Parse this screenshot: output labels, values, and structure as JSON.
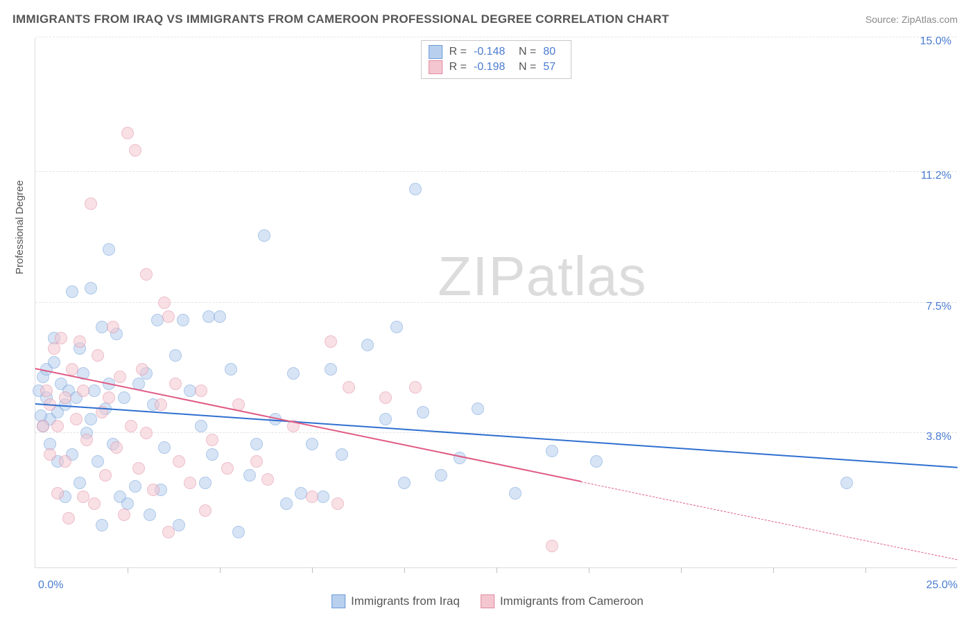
{
  "title": "IMMIGRANTS FROM IRAQ VS IMMIGRANTS FROM CAMEROON PROFESSIONAL DEGREE CORRELATION CHART",
  "source_label": "Source: ZipAtlas.com",
  "y_axis_label": "Professional Degree",
  "watermark": {
    "bold": "ZIP",
    "light": "atlas"
  },
  "chart": {
    "type": "scatter-with-regression",
    "xlim": [
      0,
      25
    ],
    "ylim": [
      0,
      15
    ],
    "x_ticks": [
      2.5,
      5,
      7.5,
      10,
      12.5,
      15,
      17.5,
      20,
      22.5
    ],
    "y_gridlines": [
      3.8,
      7.5,
      11.2,
      15.0
    ],
    "y_tick_labels_right": [
      "3.8%",
      "7.5%",
      "11.2%",
      "15.0%"
    ],
    "corner_bl": "0.0%",
    "corner_br": "25.0%",
    "background_color": "#ffffff",
    "grid_color": "#e4e4e4",
    "axis_color": "#dcdcdc",
    "label_color": "#4a7bd0",
    "marker_radius": 9,
    "marker_opacity": 0.55,
    "marker_border_width": 1.2,
    "regression_line_width": 2.5
  },
  "series": [
    {
      "label": "Immigrants from Iraq",
      "fill": "#b8cfee",
      "stroke": "#6a9bd8",
      "line_color": "#2f6fd0",
      "stats": {
        "R": "-0.148",
        "N": "80"
      },
      "regression": {
        "x1": 0,
        "y1": 4.6,
        "x2": 25,
        "y2": 2.8,
        "solid_until_x": 25
      },
      "points": [
        [
          0.1,
          5.0
        ],
        [
          0.2,
          5.4
        ],
        [
          0.2,
          4.0
        ],
        [
          0.3,
          4.8
        ],
        [
          0.3,
          5.6
        ],
        [
          0.4,
          4.2
        ],
        [
          0.4,
          3.5
        ],
        [
          0.5,
          5.8
        ],
        [
          0.5,
          6.5
        ],
        [
          0.6,
          3.0
        ],
        [
          0.6,
          4.4
        ],
        [
          0.7,
          5.2
        ],
        [
          0.8,
          4.6
        ],
        [
          0.8,
          2.0
        ],
        [
          0.9,
          5.0
        ],
        [
          1.0,
          7.8
        ],
        [
          1.0,
          3.2
        ],
        [
          1.1,
          4.8
        ],
        [
          1.2,
          6.2
        ],
        [
          1.2,
          2.4
        ],
        [
          1.3,
          5.5
        ],
        [
          1.4,
          3.8
        ],
        [
          1.5,
          7.9
        ],
        [
          1.5,
          4.2
        ],
        [
          1.6,
          5.0
        ],
        [
          1.7,
          3.0
        ],
        [
          1.8,
          6.8
        ],
        [
          1.8,
          1.2
        ],
        [
          1.9,
          4.5
        ],
        [
          2.0,
          9.0
        ],
        [
          2.0,
          5.2
        ],
        [
          2.1,
          3.5
        ],
        [
          2.2,
          6.6
        ],
        [
          2.3,
          2.0
        ],
        [
          2.4,
          4.8
        ],
        [
          2.5,
          1.8
        ],
        [
          2.7,
          2.3
        ],
        [
          2.8,
          5.2
        ],
        [
          3.0,
          5.5
        ],
        [
          3.1,
          1.5
        ],
        [
          3.2,
          4.6
        ],
        [
          3.3,
          7.0
        ],
        [
          3.4,
          2.2
        ],
        [
          3.5,
          3.4
        ],
        [
          3.8,
          6.0
        ],
        [
          3.9,
          1.2
        ],
        [
          4.0,
          7.0
        ],
        [
          4.2,
          5.0
        ],
        [
          4.5,
          4.0
        ],
        [
          4.6,
          2.4
        ],
        [
          4.7,
          7.1
        ],
        [
          4.8,
          3.2
        ],
        [
          5.0,
          7.1
        ],
        [
          5.3,
          5.6
        ],
        [
          5.5,
          1.0
        ],
        [
          5.8,
          2.6
        ],
        [
          6.0,
          3.5
        ],
        [
          6.2,
          9.4
        ],
        [
          6.5,
          4.2
        ],
        [
          6.8,
          1.8
        ],
        [
          7.0,
          5.5
        ],
        [
          7.2,
          2.1
        ],
        [
          7.5,
          3.5
        ],
        [
          7.8,
          2.0
        ],
        [
          8.0,
          5.6
        ],
        [
          8.3,
          3.2
        ],
        [
          9.0,
          6.3
        ],
        [
          9.5,
          4.2
        ],
        [
          9.8,
          6.8
        ],
        [
          10.0,
          2.4
        ],
        [
          10.3,
          10.7
        ],
        [
          10.5,
          4.4
        ],
        [
          11.0,
          2.6
        ],
        [
          11.5,
          3.1
        ],
        [
          12.0,
          4.5
        ],
        [
          13.0,
          2.1
        ],
        [
          14.0,
          3.3
        ],
        [
          15.2,
          3.0
        ],
        [
          22.0,
          2.4
        ],
        [
          0.15,
          4.3
        ]
      ]
    },
    {
      "label": "Immigrants from Cameroon",
      "fill": "#f4c7d0",
      "stroke": "#e18aa0",
      "line_color": "#e05a83",
      "stats": {
        "R": "-0.198",
        "N": "57"
      },
      "regression": {
        "x1": 0,
        "y1": 5.6,
        "x2": 25,
        "y2": 0.2,
        "solid_until_x": 14.8
      },
      "points": [
        [
          0.2,
          4.0
        ],
        [
          0.3,
          5.0
        ],
        [
          0.4,
          3.2
        ],
        [
          0.4,
          4.6
        ],
        [
          0.5,
          6.2
        ],
        [
          0.6,
          2.1
        ],
        [
          0.6,
          4.0
        ],
        [
          0.7,
          6.5
        ],
        [
          0.8,
          4.8
        ],
        [
          0.8,
          3.0
        ],
        [
          0.9,
          1.4
        ],
        [
          1.0,
          5.6
        ],
        [
          1.1,
          4.2
        ],
        [
          1.2,
          6.4
        ],
        [
          1.3,
          2.0
        ],
        [
          1.3,
          5.0
        ],
        [
          1.4,
          3.6
        ],
        [
          1.5,
          10.3
        ],
        [
          1.6,
          1.8
        ],
        [
          1.7,
          6.0
        ],
        [
          1.8,
          4.4
        ],
        [
          1.9,
          2.6
        ],
        [
          2.0,
          4.8
        ],
        [
          2.1,
          6.8
        ],
        [
          2.2,
          3.4
        ],
        [
          2.3,
          5.4
        ],
        [
          2.4,
          1.5
        ],
        [
          2.5,
          12.3
        ],
        [
          2.6,
          4.0
        ],
        [
          2.7,
          11.8
        ],
        [
          2.8,
          2.8
        ],
        [
          2.9,
          5.6
        ],
        [
          3.0,
          3.8
        ],
        [
          3.0,
          8.3
        ],
        [
          3.2,
          2.2
        ],
        [
          3.4,
          4.6
        ],
        [
          3.5,
          7.5
        ],
        [
          3.6,
          7.1
        ],
        [
          3.6,
          1.0
        ],
        [
          3.8,
          5.2
        ],
        [
          3.9,
          3.0
        ],
        [
          4.2,
          2.4
        ],
        [
          4.5,
          5.0
        ],
        [
          4.6,
          1.6
        ],
        [
          4.8,
          3.6
        ],
        [
          5.2,
          2.8
        ],
        [
          5.5,
          4.6
        ],
        [
          6.0,
          3.0
        ],
        [
          6.3,
          2.5
        ],
        [
          7.0,
          4.0
        ],
        [
          7.5,
          2.0
        ],
        [
          8.0,
          6.4
        ],
        [
          8.2,
          1.8
        ],
        [
          8.5,
          5.1
        ],
        [
          9.5,
          4.8
        ],
        [
          10.3,
          5.1
        ],
        [
          14.0,
          0.6
        ]
      ]
    }
  ],
  "stats_box": {
    "r_label": "R =",
    "n_label": "N ="
  },
  "bottom_legend_labels": [
    "Immigrants from Iraq",
    "Immigrants from Cameroon"
  ]
}
